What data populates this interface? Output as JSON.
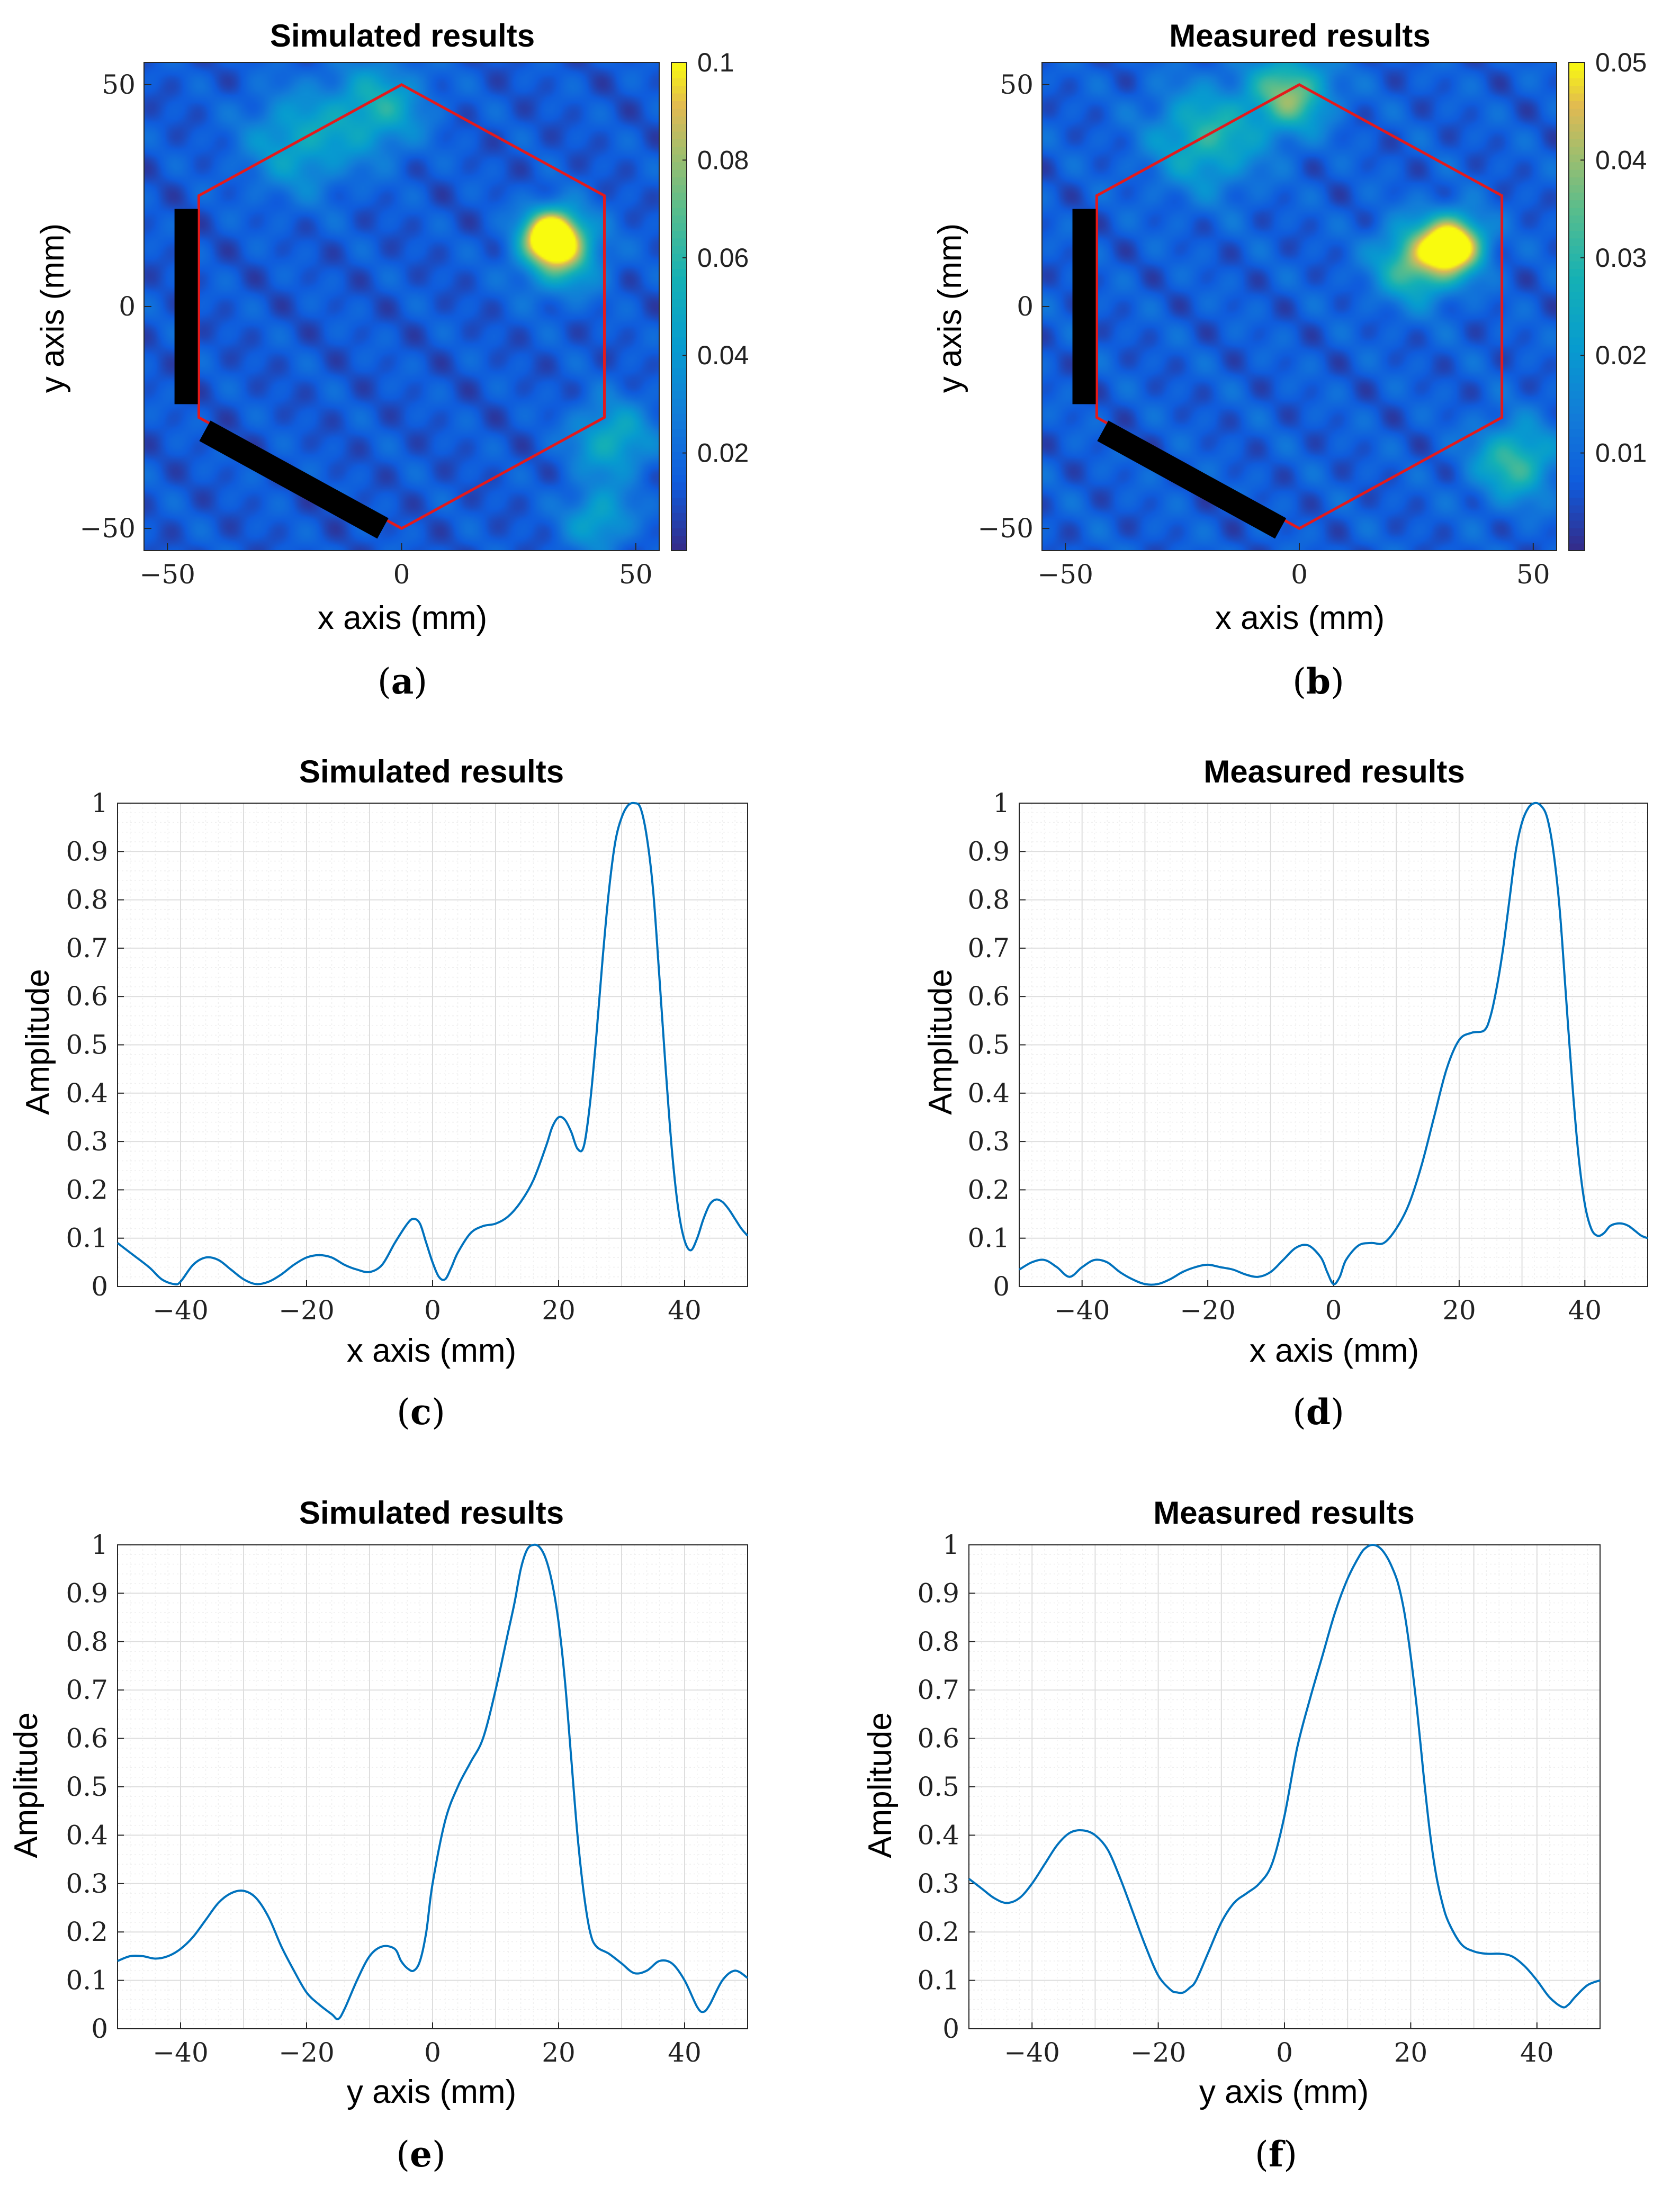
{
  "colors": {
    "background": "#ffffff",
    "line": "#0072BD",
    "hexagon": "#e31a1c",
    "grid_minor": "#efefef",
    "grid_major": "#dedede",
    "electrode": "#000000"
  },
  "chart_data": [
    {
      "panel": "a",
      "type": "heatmap",
      "title": "Simulated results",
      "xlabel": "x axis (mm)",
      "ylabel": "y axis (mm)",
      "xlim": [
        -55,
        55
      ],
      "ylim": [
        -55,
        55
      ],
      "xticks": [
        -50,
        0,
        50
      ],
      "yticks": [
        -50,
        0,
        50
      ],
      "colormap": "parula",
      "clim": [
        0,
        0.1
      ],
      "colorbar_ticks": [
        0.02,
        0.04,
        0.06,
        0.08,
        0.1
      ],
      "colorbar_tick_labels": [
        "0.02",
        "0.04",
        "0.06",
        "0.08",
        "0.1"
      ],
      "background_level": 0.018,
      "hotspots": [
        {
          "x": 32,
          "y": 16,
          "value": 0.1,
          "spread": 4.0
        },
        {
          "x": 34,
          "y": 12,
          "value": 0.055,
          "spread": 6.0
        },
        {
          "x": -5,
          "y": 45,
          "value": 0.04,
          "spread": 7.0
        },
        {
          "x": -22,
          "y": 37,
          "value": 0.035,
          "spread": 8.0
        },
        {
          "x": 45,
          "y": -30,
          "value": 0.04,
          "spread": 6.0
        },
        {
          "x": 42,
          "y": -48,
          "value": 0.035,
          "spread": 5.0
        }
      ],
      "hexagon_vertices": [
        [
          0,
          50
        ],
        [
          43.3,
          25
        ],
        [
          43.3,
          -25
        ],
        [
          0,
          -50
        ],
        [
          -43.3,
          -25
        ],
        [
          -43.3,
          25
        ]
      ],
      "electrodes": [
        {
          "from": [
            -46,
            22
          ],
          "to": [
            -46,
            -22
          ]
        },
        {
          "from": [
            -42,
            -28
          ],
          "to": [
            -4,
            -50
          ]
        }
      ],
      "subcaption": "a"
    },
    {
      "panel": "b",
      "type": "heatmap",
      "title": "Measured results",
      "xlabel": "x axis (mm)",
      "ylabel": "y axis (mm)",
      "xlim": [
        -55,
        55
      ],
      "ylim": [
        -55,
        55
      ],
      "xticks": [
        -50,
        0,
        50
      ],
      "yticks": [
        -50,
        0,
        50
      ],
      "colormap": "parula",
      "clim": [
        0,
        0.05
      ],
      "colorbar_ticks": [
        0.01,
        0.02,
        0.03,
        0.04,
        0.05
      ],
      "colorbar_tick_labels": [
        "0.01",
        "0.02",
        "0.03",
        "0.04",
        "0.05"
      ],
      "background_level": 0.01,
      "hotspots": [
        {
          "x": 33,
          "y": 14,
          "value": 0.05,
          "spread": 4.5
        },
        {
          "x": 25,
          "y": 10,
          "value": 0.03,
          "spread": 6.0
        },
        {
          "x": -2,
          "y": 48,
          "value": 0.03,
          "spread": 6.0
        },
        {
          "x": -20,
          "y": 38,
          "value": 0.022,
          "spread": 8.0
        },
        {
          "x": 46,
          "y": -35,
          "value": 0.025,
          "spread": 6.0
        }
      ],
      "hexagon_vertices": [
        [
          0,
          50
        ],
        [
          43.3,
          25
        ],
        [
          43.3,
          -25
        ],
        [
          0,
          -50
        ],
        [
          -43.3,
          -25
        ],
        [
          -43.3,
          25
        ]
      ],
      "electrodes": [
        {
          "from": [
            -46,
            22
          ],
          "to": [
            -46,
            -22
          ]
        },
        {
          "from": [
            -42,
            -28
          ],
          "to": [
            -4,
            -50
          ]
        }
      ],
      "subcaption": "b"
    },
    {
      "panel": "c",
      "type": "line",
      "title": "Simulated results",
      "xlabel": "x axis (mm)",
      "ylabel": "Amplitude",
      "xlim": [
        -50,
        50
      ],
      "ylim": [
        0,
        1
      ],
      "xticks": [
        -40,
        -20,
        0,
        20,
        40
      ],
      "yticks": [
        0,
        0.1,
        0.2,
        0.3,
        0.4,
        0.5,
        0.6,
        0.7,
        0.8,
        0.9,
        1
      ],
      "grid": true,
      "series": [
        {
          "name": "Simulated",
          "x": [
            -50,
            -48,
            -45,
            -43,
            -41,
            -40,
            -38,
            -36,
            -34,
            -32,
            -30,
            -28,
            -26,
            -24,
            -22,
            -20,
            -18,
            -16,
            -14,
            -12,
            -10,
            -8,
            -6,
            -4,
            -3,
            -2,
            -1,
            0,
            1,
            2,
            3,
            4,
            6,
            8,
            10,
            12,
            14,
            16,
            18,
            19,
            20,
            21,
            22,
            23,
            24,
            25,
            26,
            27,
            28,
            29,
            30,
            31,
            32,
            33,
            34,
            35,
            36,
            37,
            38,
            39,
            40,
            41,
            42,
            43,
            44,
            45,
            46,
            47,
            48,
            49,
            50
          ],
          "y": [
            0.09,
            0.07,
            0.04,
            0.015,
            0.005,
            0.01,
            0.045,
            0.06,
            0.055,
            0.035,
            0.015,
            0.005,
            0.01,
            0.025,
            0.045,
            0.06,
            0.065,
            0.06,
            0.045,
            0.035,
            0.03,
            0.045,
            0.09,
            0.13,
            0.14,
            0.13,
            0.09,
            0.05,
            0.02,
            0.015,
            0.04,
            0.07,
            0.11,
            0.125,
            0.13,
            0.145,
            0.175,
            0.22,
            0.29,
            0.33,
            0.35,
            0.345,
            0.32,
            0.285,
            0.29,
            0.38,
            0.52,
            0.68,
            0.82,
            0.92,
            0.97,
            0.995,
            1.0,
            0.99,
            0.93,
            0.82,
            0.64,
            0.45,
            0.28,
            0.16,
            0.095,
            0.075,
            0.1,
            0.14,
            0.17,
            0.18,
            0.175,
            0.16,
            0.14,
            0.12,
            0.105
          ]
        }
      ],
      "subcaption": "c"
    },
    {
      "panel": "d",
      "type": "line",
      "title": "Measured results",
      "xlabel": "x axis (mm)",
      "ylabel": "Amplitude",
      "xlim": [
        -50,
        50
      ],
      "ylim": [
        0,
        1
      ],
      "xticks": [
        -40,
        -20,
        0,
        20,
        40
      ],
      "yticks": [
        0,
        0.1,
        0.2,
        0.3,
        0.4,
        0.5,
        0.6,
        0.7,
        0.8,
        0.9,
        1
      ],
      "grid": true,
      "series": [
        {
          "name": "Measured",
          "x": [
            -50,
            -48,
            -46,
            -44,
            -42,
            -40,
            -38,
            -36,
            -34,
            -32,
            -30,
            -28,
            -26,
            -24,
            -22,
            -20,
            -18,
            -16,
            -14,
            -12,
            -10,
            -8,
            -6,
            -4,
            -2,
            -1,
            0,
            1,
            2,
            4,
            6,
            8,
            10,
            12,
            14,
            16,
            18,
            20,
            22,
            24,
            25,
            26,
            27,
            28,
            29,
            30,
            31,
            32,
            33,
            34,
            35,
            36,
            37,
            38,
            39,
            40,
            41,
            42,
            43,
            44,
            45,
            46,
            47,
            48,
            49,
            50
          ],
          "y": [
            0.035,
            0.05,
            0.055,
            0.04,
            0.02,
            0.04,
            0.055,
            0.05,
            0.03,
            0.015,
            0.005,
            0.005,
            0.015,
            0.03,
            0.04,
            0.045,
            0.04,
            0.035,
            0.025,
            0.02,
            0.03,
            0.055,
            0.08,
            0.085,
            0.06,
            0.03,
            0.005,
            0.02,
            0.055,
            0.085,
            0.09,
            0.09,
            0.12,
            0.17,
            0.25,
            0.35,
            0.45,
            0.51,
            0.525,
            0.53,
            0.56,
            0.62,
            0.7,
            0.8,
            0.9,
            0.96,
            0.99,
            1.0,
            0.995,
            0.97,
            0.9,
            0.78,
            0.6,
            0.42,
            0.27,
            0.17,
            0.12,
            0.105,
            0.11,
            0.125,
            0.13,
            0.13,
            0.125,
            0.115,
            0.105,
            0.1
          ]
        }
      ],
      "subcaption": "d"
    },
    {
      "panel": "e",
      "type": "line",
      "title": "Simulated results",
      "xlabel": "y axis (mm)",
      "ylabel": "Amplitude",
      "xlim": [
        -50,
        50
      ],
      "ylim": [
        0,
        1
      ],
      "xticks": [
        -40,
        -20,
        0,
        20,
        40
      ],
      "yticks": [
        0,
        0.1,
        0.2,
        0.3,
        0.4,
        0.5,
        0.6,
        0.7,
        0.8,
        0.9,
        1
      ],
      "grid": true,
      "series": [
        {
          "name": "Simulated",
          "x": [
            -50,
            -48,
            -46,
            -44,
            -42,
            -40,
            -38,
            -36,
            -34,
            -32,
            -30,
            -28,
            -26,
            -24,
            -22,
            -20,
            -18,
            -16,
            -15,
            -14,
            -12,
            -10,
            -8,
            -6,
            -5,
            -4,
            -3,
            -2,
            -1,
            0,
            2,
            4,
            6,
            8,
            10,
            12,
            13,
            14,
            15,
            16,
            17,
            18,
            19,
            20,
            21,
            22,
            23,
            24,
            25,
            26,
            28,
            30,
            32,
            34,
            36,
            38,
            40,
            42,
            43,
            44,
            46,
            48,
            50
          ],
          "y": [
            0.14,
            0.15,
            0.15,
            0.145,
            0.15,
            0.165,
            0.19,
            0.225,
            0.26,
            0.28,
            0.285,
            0.27,
            0.23,
            0.17,
            0.12,
            0.075,
            0.05,
            0.03,
            0.02,
            0.04,
            0.1,
            0.15,
            0.17,
            0.165,
            0.14,
            0.125,
            0.12,
            0.14,
            0.2,
            0.3,
            0.43,
            0.5,
            0.55,
            0.6,
            0.7,
            0.82,
            0.88,
            0.95,
            0.99,
            1.0,
            0.995,
            0.97,
            0.92,
            0.84,
            0.72,
            0.56,
            0.4,
            0.28,
            0.2,
            0.17,
            0.155,
            0.135,
            0.115,
            0.12,
            0.14,
            0.135,
            0.1,
            0.045,
            0.035,
            0.05,
            0.1,
            0.12,
            0.105
          ]
        }
      ],
      "subcaption": "e"
    },
    {
      "panel": "f",
      "type": "line",
      "title": "Measured results",
      "xlabel": "y axis (mm)",
      "ylabel": "Amplitude",
      "xlim": [
        -50,
        50
      ],
      "ylim": [
        0,
        1
      ],
      "xticks": [
        -40,
        -20,
        0,
        20,
        40
      ],
      "yticks": [
        0,
        0.1,
        0.2,
        0.3,
        0.4,
        0.5,
        0.6,
        0.7,
        0.8,
        0.9,
        1
      ],
      "grid": true,
      "series": [
        {
          "name": "Measured",
          "x": [
            -50,
            -48,
            -46,
            -44,
            -42,
            -40,
            -38,
            -36,
            -34,
            -32,
            -30,
            -28,
            -26,
            -24,
            -22,
            -20,
            -18,
            -17,
            -16,
            -15,
            -14,
            -12,
            -10,
            -8,
            -6,
            -4,
            -2,
            0,
            2,
            4,
            6,
            8,
            10,
            12,
            13,
            14,
            15,
            16,
            17,
            18,
            19,
            20,
            21,
            22,
            23,
            24,
            25,
            26,
            28,
            30,
            32,
            34,
            36,
            38,
            40,
            42,
            44,
            45,
            46,
            48,
            50
          ],
          "y": [
            0.31,
            0.29,
            0.27,
            0.26,
            0.27,
            0.3,
            0.34,
            0.38,
            0.405,
            0.41,
            0.4,
            0.37,
            0.31,
            0.24,
            0.17,
            0.11,
            0.08,
            0.075,
            0.075,
            0.085,
            0.1,
            0.16,
            0.22,
            0.26,
            0.28,
            0.3,
            0.34,
            0.44,
            0.58,
            0.68,
            0.77,
            0.86,
            0.93,
            0.98,
            0.995,
            1.0,
            0.995,
            0.98,
            0.955,
            0.92,
            0.86,
            0.77,
            0.66,
            0.53,
            0.41,
            0.32,
            0.26,
            0.22,
            0.175,
            0.16,
            0.155,
            0.155,
            0.15,
            0.13,
            0.1,
            0.065,
            0.045,
            0.05,
            0.065,
            0.09,
            0.1
          ]
        }
      ],
      "subcaption": "f"
    }
  ]
}
